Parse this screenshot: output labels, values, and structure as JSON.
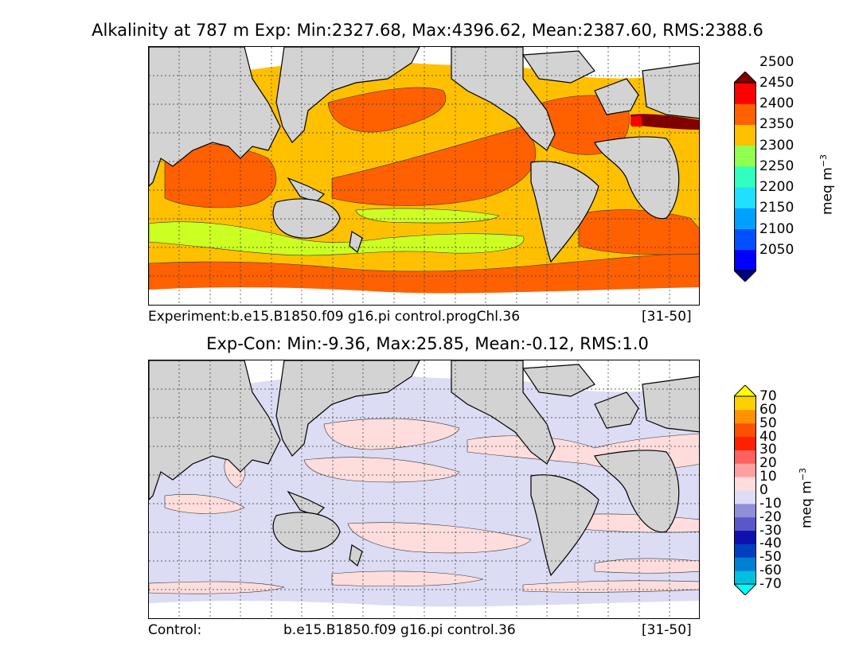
{
  "top_panel": {
    "title": "Alkalinity at 787 m Exp: Min:2327.68, Max:4396.62, Mean:2387.60, RMS:2388.6",
    "caption_left": "Experiment:b.e15.B1850.f09 g16.pi control.progChl.36",
    "caption_right": "[31-50]",
    "colorbar": {
      "levels": [
        "2050",
        "2100",
        "2150",
        "2200",
        "2250",
        "2300",
        "2350",
        "2400",
        "2450",
        "2500"
      ],
      "colors": [
        "#00007f",
        "#0000ff",
        "#0050ff",
        "#00a0ff",
        "#20e0ff",
        "#30ffc0",
        "#90ff50",
        "#ffc000",
        "#ff6000",
        "#ff0000",
        "#800000"
      ],
      "unit": "meq m",
      "unit_exp": "−3"
    }
  },
  "bottom_panel": {
    "title": "Exp-Con: Min:-9.36, Max:25.85, Mean:-0.12, RMS:1.0",
    "caption_left": "Control:",
    "caption_mid": "b.e15.B1850.f09 g16.pi control.36",
    "caption_right": "[31-50]",
    "colorbar": {
      "levels": [
        "70",
        "60",
        "50",
        "40",
        "30",
        "20",
        "10",
        "0",
        "-10",
        "-20",
        "-30",
        "-40",
        "-50",
        "-60",
        "-70"
      ],
      "colors": [
        "#ffff00",
        "#ffd000",
        "#ff9000",
        "#ff5000",
        "#ff2000",
        "#ff6060",
        "#ffa0a0",
        "#ffdddd",
        "#dcdcf4",
        "#9090d8",
        "#5858c8",
        "#1010b0",
        "#0040c0",
        "#0080d0",
        "#00c0e0",
        "#00ffff"
      ],
      "unit": "meq m",
      "unit_exp": "−3"
    }
  },
  "colors": {
    "land": "#d3d3d3",
    "ice": "#ffffff",
    "alk_2350": "#ffc000",
    "alk_2400": "#ff6000",
    "alk_2300": "#ccff22",
    "alk_2450": "#ff0000",
    "alk_2500": "#800000",
    "diff_neg": "#dcdcf4",
    "diff_pos": "#ffdddd"
  }
}
